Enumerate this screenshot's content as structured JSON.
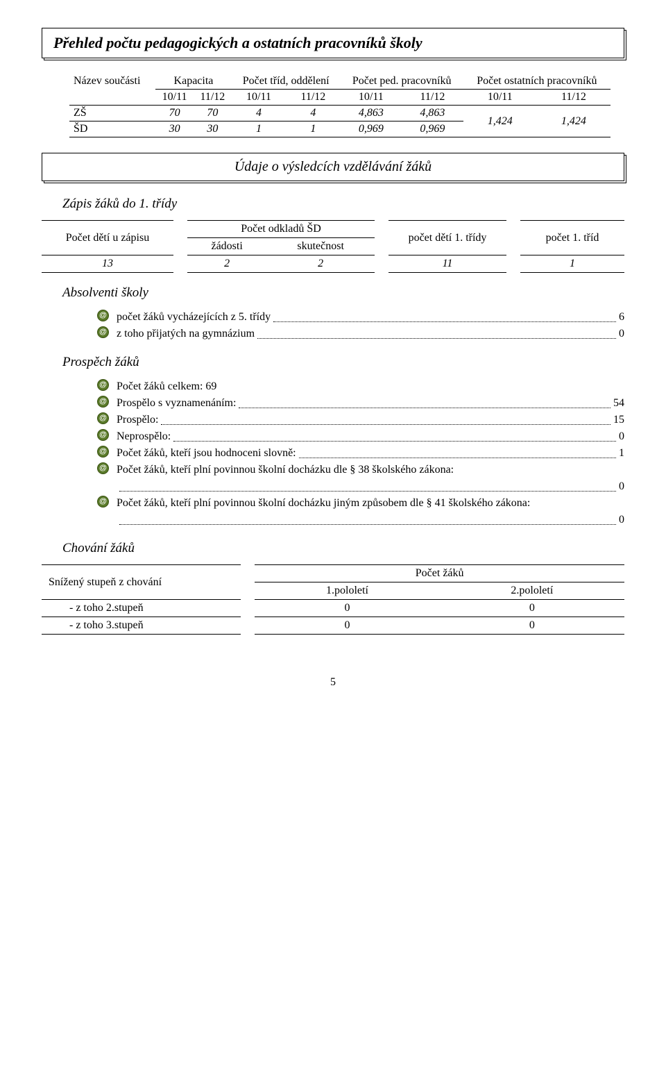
{
  "title_main": "Přehled počtu pedagogických a ostatních pracovníků školy",
  "title_sub": "Údaje o výsledcích vzdělávání žáků",
  "table1": {
    "headers": {
      "name": "Název součásti",
      "capacity": "Kapacita",
      "classes": "Počet tříd, oddělení",
      "ped": "Počet ped. pracovníků",
      "other": "Počet ostatních pracovníků"
    },
    "years": [
      "10/11",
      "11/12",
      "10/11",
      "11/12",
      "10/11",
      "11/12",
      "10/11",
      "11/12"
    ],
    "rows": [
      {
        "label": "ZŠ",
        "cells": [
          "70",
          "70",
          "4",
          "4",
          "4,863",
          "4,863"
        ]
      },
      {
        "label": "ŠD",
        "cells": [
          "30",
          "30",
          "1",
          "1",
          "0,969",
          "0,969"
        ]
      }
    ],
    "merged_other": [
      "1,424",
      "1,424"
    ]
  },
  "section_zapis": "Zápis žáků do 1. třídy",
  "table2": {
    "h": [
      "Počet dětí u zápisu",
      "Počet odkladů ŠD",
      "počet dětí 1. třídy",
      "počet 1. tříd"
    ],
    "sub": [
      "žádosti",
      "skutečnost"
    ],
    "row": [
      "13",
      "2",
      "2",
      "11",
      "1"
    ]
  },
  "section_abs": "Absolventi školy",
  "abs_list": [
    {
      "text": "počet žáků vycházejících z 5. třídy",
      "val": "6"
    },
    {
      "text": "z toho přijatých na gymnázium",
      "val": "0"
    }
  ],
  "section_prospech": "Prospěch žáků",
  "pros_list": [
    {
      "text": "Počet žáků celkem:",
      "sep": "plain",
      "val": "69"
    },
    {
      "text": "Prospělo s vyznamenáním:",
      "sep": "dots",
      "val": "54"
    },
    {
      "text": "Prospělo:",
      "sep": "dots",
      "val": "15"
    },
    {
      "text": "Neprospělo:",
      "sep": "dots",
      "val": "0"
    },
    {
      "text": "Počet žáků, kteří jsou hodnoceni slovně:",
      "sep": "dots",
      "val": "1"
    },
    {
      "text": "Počet žáků, kteří plní povinnou školní docházku dle § 38 školského zákona:",
      "sep": "nl_dots",
      "val": "0"
    },
    {
      "text": "Počet žáků, kteří plní povinnou školní docházku jiným způsobem dle § 41 školského zákona:",
      "sep": "nl_dots",
      "val": "0"
    }
  ],
  "section_chov": "Chování žáků",
  "table3": {
    "h_left": "Snížený stupeň z chování",
    "h_right": "Počet žáků",
    "sub": [
      "1.pololetí",
      "2.pololetí"
    ],
    "rows": [
      {
        "label": "- z toho 2.stupeň",
        "cells": [
          "0",
          "0"
        ]
      },
      {
        "label": "- z toho 3.stupeň",
        "cells": [
          "0",
          "0"
        ]
      }
    ]
  },
  "pagenum": "5",
  "colors": {
    "bullet_bg": "#5a7a2a",
    "bullet_border": "#3a5212"
  }
}
